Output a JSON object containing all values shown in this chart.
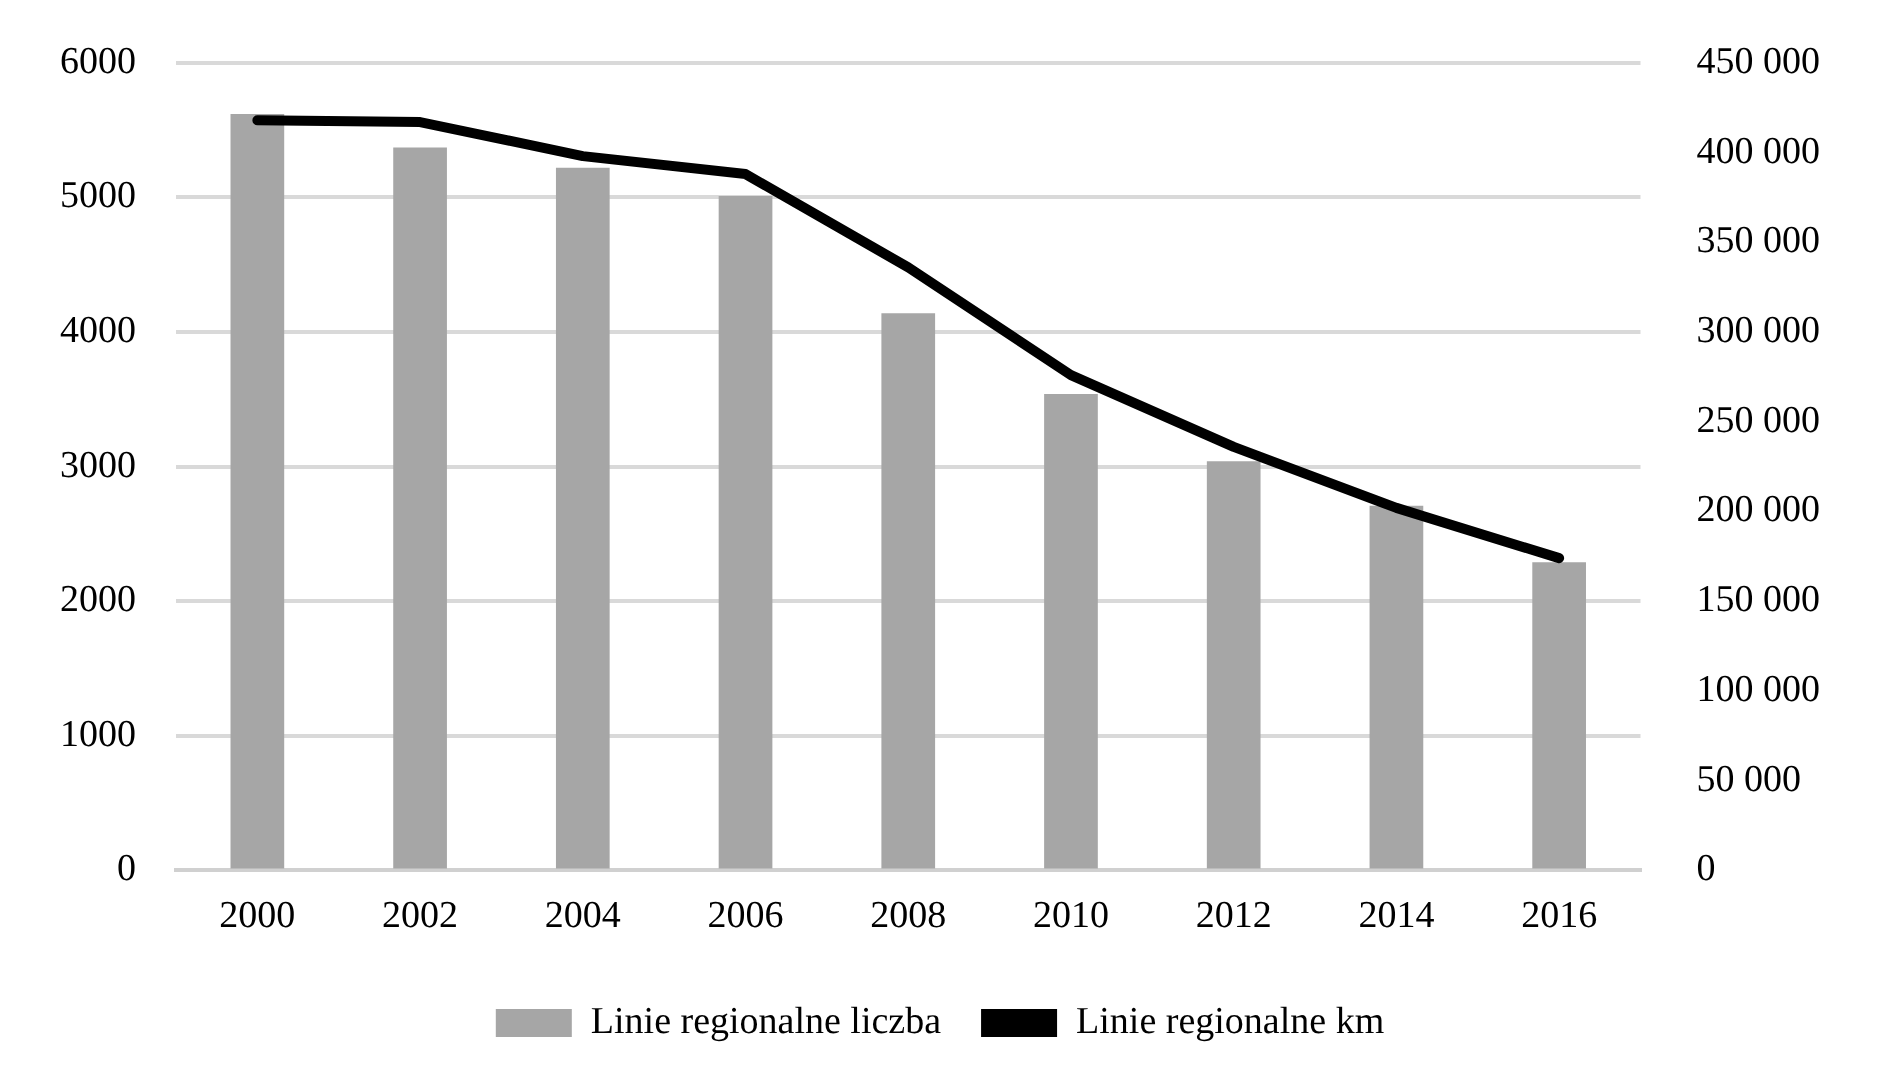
{
  "chart_data": {
    "type": "bar",
    "categories": [
      "2000",
      "2002",
      "2004",
      "2006",
      "2008",
      "2010",
      "2012",
      "2014",
      "2016"
    ],
    "series": [
      {
        "name": "Linie regionalne liczba",
        "color": "#a6a6a6",
        "values": [
          5620,
          5370,
          5220,
          5010,
          4140,
          3540,
          3040,
          2710,
          2290
        ]
      },
      {
        "name": "Linie regionalne km",
        "type": "line",
        "axis": "y2",
        "color": "#000000",
        "values": [
          418000,
          417000,
          398000,
          388000,
          336000,
          276000,
          236000,
          202000,
          174000
        ]
      }
    ],
    "ylim": [
      0,
      6000
    ],
    "yticks": [
      0,
      1000,
      2000,
      3000,
      4000,
      5000,
      6000
    ],
    "y2lim": [
      0,
      450000
    ],
    "y2ticks": [
      {
        "value": 0,
        "label": "0"
      },
      {
        "value": 50000,
        "label": "50 000"
      },
      {
        "value": 100000,
        "label": "100 000"
      },
      {
        "value": 150000,
        "label": "150 000"
      },
      {
        "value": 200000,
        "label": "200 000"
      },
      {
        "value": 250000,
        "label": "250 000"
      },
      {
        "value": 300000,
        "label": "300 000"
      },
      {
        "value": 350000,
        "label": "350 000"
      },
      {
        "value": 400000,
        "label": "400 000"
      },
      {
        "value": 450000,
        "label": "450 000"
      }
    ],
    "grid": "y",
    "legend": "bottom",
    "marker": "none"
  }
}
